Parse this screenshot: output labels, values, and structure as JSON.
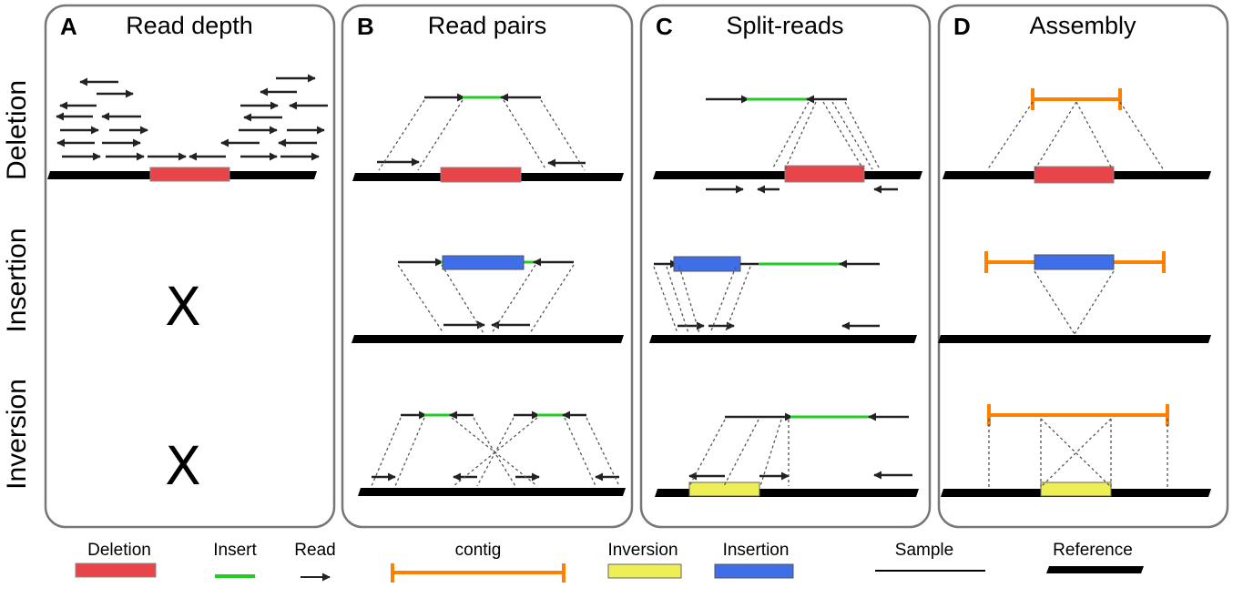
{
  "panels": [
    {
      "letter": "A",
      "title": "Read depth"
    },
    {
      "letter": "B",
      "title": "Read pairs"
    },
    {
      "letter": "C",
      "title": "Split-reads"
    },
    {
      "letter": "D",
      "title": "Assembly"
    }
  ],
  "rows": [
    "Deletion",
    "Insertion",
    "Inversion"
  ],
  "not_applicable_mark": "X",
  "legend": {
    "deletion": "Deletion",
    "insert": "Insert",
    "read": "Read",
    "contig": "contig",
    "inversion": "Inversion",
    "insertion": "Insertion",
    "sample": "Sample",
    "reference": "Reference"
  },
  "colors": {
    "deletion": "#e8454a",
    "insert": "#22cc22",
    "contig": "#ff8000",
    "inversion": "#eeee55",
    "insertion": "#3f6fe8",
    "reference": "#000000",
    "panel_border": "#777777"
  }
}
